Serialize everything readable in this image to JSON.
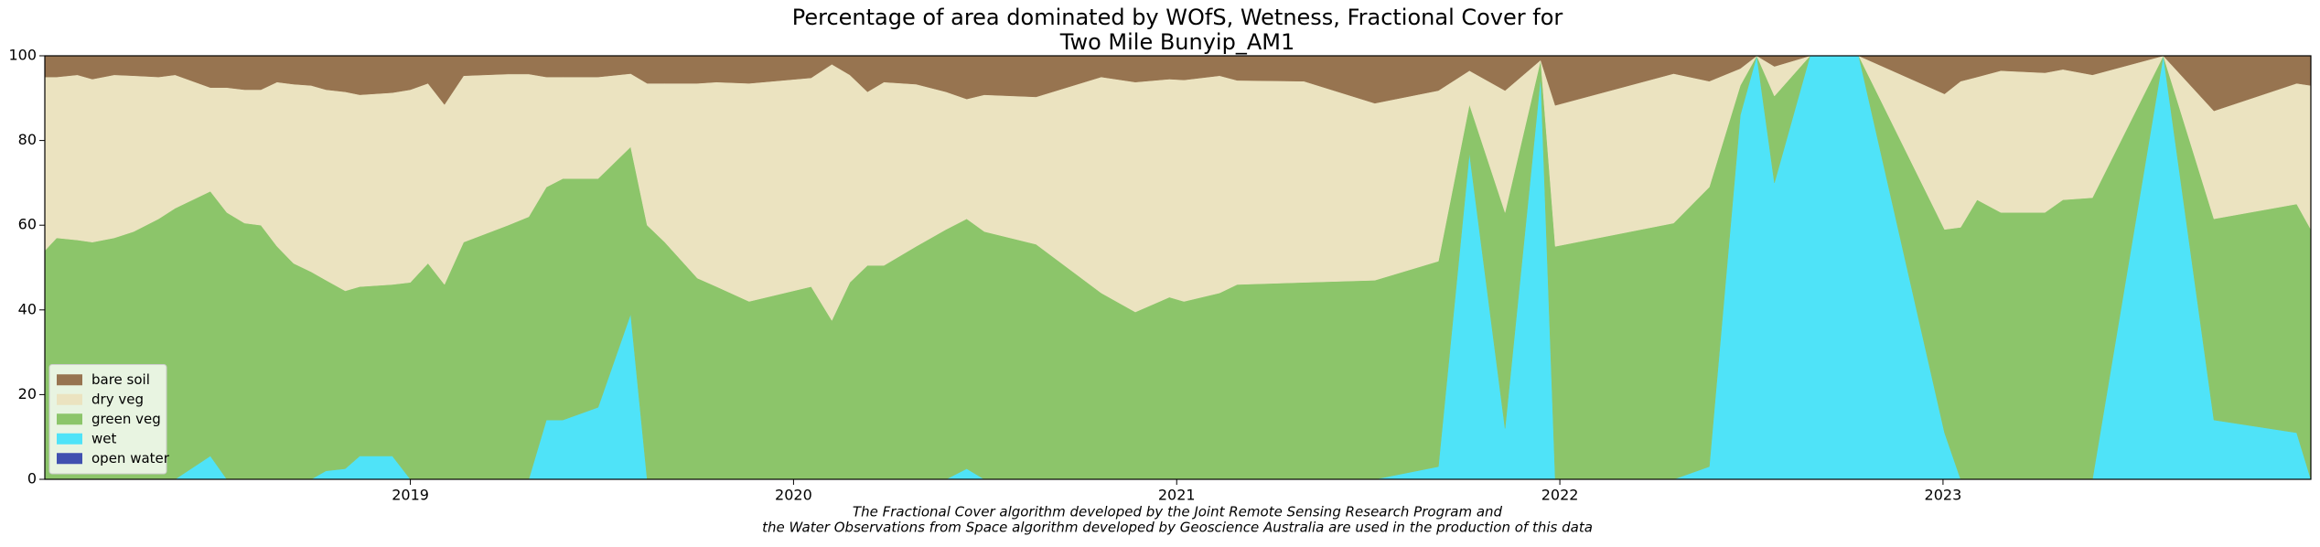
{
  "chart_data": {
    "type": "stackedarea",
    "title": "Percentage of area dominated by WOfS, Wetness, Fractional Cover for",
    "subtitle": "Two Mile Bunyip_AM1",
    "footnote": [
      "The Fractional Cover algorithm developed by the Joint Remote Sensing Research Program and",
      "the Water Observations from Space algorithm developed by Geoscience Australia are used in the production of this data"
    ],
    "legend": "lower left",
    "xlim": [
      2018.046,
      2023.96
    ],
    "xticks": [
      2019,
      2020,
      2021,
      2022,
      2023
    ],
    "ylim": [
      0,
      100
    ],
    "yticks": [
      0,
      20,
      40,
      60,
      80,
      100
    ],
    "x": [
      2018.046,
      2018.077,
      2018.131,
      2018.17,
      2018.227,
      2018.278,
      2018.343,
      2018.386,
      2018.478,
      2018.521,
      2018.567,
      2018.61,
      2018.652,
      2018.695,
      2018.741,
      2018.78,
      2018.83,
      2018.868,
      2018.953,
      2019.0,
      2019.046,
      2019.089,
      2019.139,
      2019.255,
      2019.309,
      2019.355,
      2019.398,
      2019.49,
      2019.575,
      2019.618,
      2019.664,
      2019.749,
      2019.799,
      2019.884,
      2020.046,
      2020.1,
      2020.147,
      2020.193,
      2020.236,
      2020.32,
      2020.398,
      2020.452,
      2020.498,
      2020.633,
      2020.803,
      2020.892,
      2020.981,
      2021.019,
      2021.112,
      2021.158,
      2021.332,
      2021.517,
      2021.683,
      2021.764,
      2021.857,
      2021.95,
      2021.988,
      2022.297,
      2022.39,
      2022.471,
      2022.514,
      2022.56,
      2022.653,
      2022.78,
      2023.004,
      2023.046,
      2023.089,
      2023.151,
      2023.266,
      2023.313,
      2023.39,
      2023.575,
      2023.707,
      2023.923,
      2023.96
    ],
    "series": [
      {
        "name": "open water",
        "color": "#4050b0",
        "values": [
          0,
          0,
          0,
          0,
          0,
          0,
          0,
          0,
          0,
          0,
          0,
          0,
          0,
          0,
          0,
          0,
          0,
          0,
          0,
          0,
          0,
          0,
          0,
          0,
          0,
          0,
          0,
          0,
          0,
          0,
          0,
          0,
          0,
          0,
          0,
          0,
          0,
          0,
          0,
          0,
          0,
          0,
          0,
          0,
          0,
          0,
          0,
          0,
          0,
          0,
          0,
          0,
          0,
          0,
          0,
          0,
          0,
          0,
          0,
          0,
          0,
          0,
          0,
          0,
          0,
          0,
          0,
          0,
          0,
          0,
          0,
          0,
          0,
          0,
          0
        ]
      },
      {
        "name": "wet",
        "color": "#4fe3f8",
        "values": [
          0,
          0,
          0,
          0,
          0,
          0,
          0,
          0,
          5.5,
          0,
          0,
          0,
          0,
          0,
          0,
          2,
          2.5,
          5.5,
          5.5,
          0,
          0,
          0,
          0,
          0,
          0,
          14,
          14,
          17,
          39,
          0,
          0,
          0,
          0,
          0,
          0,
          0,
          0,
          0,
          0,
          0,
          0,
          2.5,
          0,
          0,
          0,
          0,
          0,
          0,
          0,
          0,
          0,
          0,
          3,
          77,
          12,
          95,
          0,
          0,
          3,
          86,
          100,
          70,
          100,
          100,
          11,
          0,
          0,
          0,
          0,
          0,
          0,
          100,
          14,
          11,
          0
        ]
      },
      {
        "name": "green veg",
        "color": "#8cc56a",
        "values": [
          54,
          57,
          56.5,
          56,
          57,
          58.5,
          61.5,
          64,
          62.5,
          63,
          60.5,
          60,
          55,
          51,
          49,
          45,
          42,
          40,
          40.5,
          46.5,
          51,
          46,
          56,
          60,
          62,
          55,
          57,
          54,
          39.5,
          60,
          56,
          47.5,
          45.5,
          42,
          45.5,
          37.5,
          46.5,
          50.5,
          50.5,
          55,
          59,
          59,
          58.5,
          55.5,
          44,
          39.5,
          43,
          42,
          44,
          46,
          46.5,
          47,
          48.5,
          11.5,
          51,
          4,
          55,
          60.5,
          66,
          7,
          0,
          20.5,
          0,
          0,
          48,
          59.5,
          66,
          63,
          63,
          66,
          66.5,
          0,
          47.5,
          54,
          59
        ]
      },
      {
        "name": "dry veg",
        "color": "#ebe3c0",
        "values": [
          41,
          38,
          39,
          38.5,
          38.5,
          36.8,
          33.5,
          31.5,
          24.5,
          29.5,
          31.5,
          32,
          38.8,
          42.3,
          44,
          45,
          47,
          45.3,
          45.3,
          45.5,
          42.5,
          42.5,
          39.3,
          35.7,
          33.7,
          26,
          24,
          24,
          17.3,
          33.5,
          37.5,
          46,
          48.3,
          51.5,
          49.3,
          60.5,
          49,
          41,
          43.3,
          38.3,
          32.5,
          28.3,
          32.3,
          34.8,
          51,
          54.3,
          51.5,
          52.3,
          51.3,
          48.2,
          47.5,
          41.8,
          40.3,
          8,
          28.8,
          0,
          33.3,
          35.3,
          25,
          4,
          0,
          7,
          0,
          0,
          32,
          34.5,
          29,
          33.5,
          33,
          30.8,
          29,
          0,
          25.5,
          28.5,
          34
        ]
      },
      {
        "name": "bare soil",
        "color": "#977450",
        "values": [
          5,
          5,
          4.5,
          5.5,
          4.5,
          4.7,
          5,
          4.5,
          7.5,
          7.5,
          8,
          8,
          6.2,
          6.7,
          7,
          8,
          8.5,
          9.2,
          8.7,
          8,
          6.5,
          11.5,
          4.7,
          4.3,
          4.3,
          5,
          5,
          5,
          4.2,
          6.5,
          6.5,
          6.5,
          6.2,
          6.5,
          5.2,
          2,
          4.5,
          8.5,
          6.2,
          6.7,
          8.5,
          10.2,
          9.2,
          9.7,
          5,
          6.2,
          5.5,
          5.7,
          4.7,
          5.8,
          6,
          11.2,
          8.2,
          3.5,
          8.2,
          1,
          11.7,
          4.2,
          6,
          3,
          0,
          2.5,
          0,
          0,
          9,
          6,
          5,
          3.5,
          4,
          3.2,
          4.5,
          0,
          13,
          6.5,
          7
        ]
      }
    ]
  }
}
